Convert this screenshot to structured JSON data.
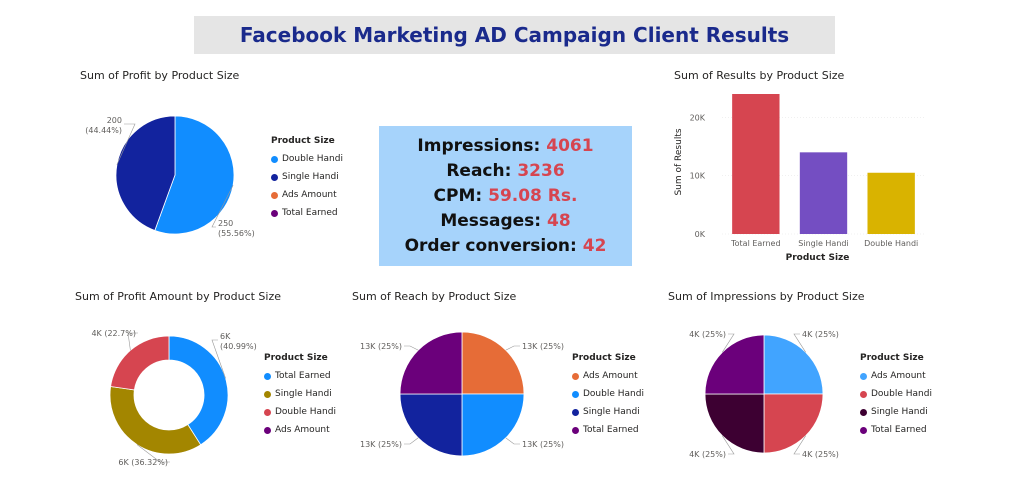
{
  "banner": {
    "title": "Facebook Marketing AD Campaign Client Results"
  },
  "kpi": {
    "rows": [
      {
        "label": "Impressions: ",
        "value": "4061"
      },
      {
        "label": "Reach: ",
        "value": "3236"
      },
      {
        "label": "CPM: ",
        "value": "59.08 Rs."
      },
      {
        "label": "Messages: ",
        "value": "48"
      },
      {
        "label": "Order conversion: ",
        "value": "42"
      }
    ]
  },
  "colors": {
    "light_blue": "#118dff",
    "navy": "#12239e",
    "orange": "#e66c37",
    "purple": "#6b007b",
    "olive": "#a38600",
    "red": "#d64550",
    "violet": "#744ec2",
    "gold": "#d9b300",
    "sky": "#41a4ff",
    "dark_purple": "#3d0032"
  },
  "chart_data": [
    {
      "type": "pie",
      "title": "Sum of Profit by Product Size",
      "legend_title": "Product  Size",
      "legend": [
        "Double Handi",
        "Single Handi",
        "Ads Amount",
        "Total Earned"
      ],
      "legend_colors": [
        "#118dff",
        "#12239e",
        "#e66c37",
        "#6b007b"
      ],
      "slices": [
        {
          "name": "Double Handi",
          "value": 250,
          "label": "250",
          "pct": "(55.56%)",
          "color": "#118dff"
        },
        {
          "name": "Single Handi",
          "value": 200,
          "label": "200",
          "pct": "(44.44%)",
          "color": "#12239e"
        }
      ]
    },
    {
      "type": "bar",
      "title": "Sum of Results by Product Size",
      "xlabel": "Product Size",
      "ylabel": "Sum of Results",
      "categories": [
        "Total Earned",
        "Single Handi",
        "Double Handi"
      ],
      "values": [
        24000,
        14000,
        10500
      ],
      "colors": [
        "#d64550",
        "#744ec2",
        "#d9b300"
      ],
      "yticks": [
        0,
        10000,
        20000
      ],
      "ytick_labels": [
        "0K",
        "10K",
        "20K"
      ],
      "ylim": [
        0,
        24000
      ]
    },
    {
      "type": "pie",
      "donut": true,
      "title": "Sum of Profit Amount by Product Size",
      "legend_title": "Product  Size",
      "legend": [
        "Total Earned",
        "Single Handi",
        "Double Handi",
        "Ads Amount"
      ],
      "legend_colors": [
        "#118dff",
        "#a38600",
        "#d64550",
        "#6b007b"
      ],
      "slices": [
        {
          "name": "Total Earned",
          "value": 40.99,
          "label": "6K",
          "pct": "(40.99%)",
          "color": "#118dff"
        },
        {
          "name": "Single Handi",
          "value": 36.32,
          "label": "6K (36.32%)",
          "pct": "",
          "color": "#a38600"
        },
        {
          "name": "Double Handi",
          "value": 22.7,
          "label": "4K (22.7%)",
          "pct": "",
          "color": "#d64550"
        }
      ]
    },
    {
      "type": "pie",
      "title": "Sum of Reach by Product Size",
      "legend_title": "Product  Size",
      "legend": [
        "Ads Amount",
        "Double Handi",
        "Single Handi",
        "Total Earned"
      ],
      "legend_colors": [
        "#e66c37",
        "#118dff",
        "#12239e",
        "#6b007b"
      ],
      "slices": [
        {
          "name": "Ads Amount",
          "value": 25,
          "label": "13K (25%)",
          "color": "#e66c37"
        },
        {
          "name": "Double Handi",
          "value": 25,
          "label": "13K (25%)",
          "color": "#118dff"
        },
        {
          "name": "Single Handi",
          "value": 25,
          "label": "13K (25%)",
          "color": "#12239e"
        },
        {
          "name": "Total Earned",
          "value": 25,
          "label": "13K (25%)",
          "color": "#6b007b"
        }
      ]
    },
    {
      "type": "pie",
      "title": "Sum of Impressions by Product Size",
      "legend_title": "Product  Size",
      "legend": [
        "Ads Amount",
        "Double Handi",
        "Single Handi",
        "Total Earned"
      ],
      "legend_colors": [
        "#41a4ff",
        "#d64550",
        "#3d0032",
        "#6b007b"
      ],
      "slices": [
        {
          "name": "Ads Amount",
          "value": 25,
          "label": "4K (25%)",
          "color": "#41a4ff"
        },
        {
          "name": "Double Handi",
          "value": 25,
          "label": "4K (25%)",
          "color": "#d64550"
        },
        {
          "name": "Single Handi",
          "value": 25,
          "label": "4K (25%)",
          "color": "#3d0032"
        },
        {
          "name": "Total Earned",
          "value": 25,
          "label": "4K (25%)",
          "color": "#6b007b"
        }
      ]
    }
  ]
}
